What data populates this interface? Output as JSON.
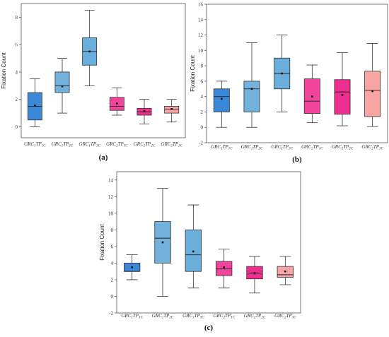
{
  "chart_data": [
    {
      "type": "box",
      "panel_label": "(a)",
      "ylabel": "Fixation Count",
      "ylim": [
        -0.8,
        9
      ],
      "yticks": [
        0,
        2,
        4,
        6,
        8
      ],
      "categories": [
        "GRC1TP1C",
        "GRC1TP2C",
        "GRC1TP3C",
        "GRC2TP1C",
        "GRC2TP2C",
        "GRC2TP3C"
      ],
      "colors": [
        "#3b87d8",
        "#72b1dc",
        "#6aaedc",
        "#f0449d",
        "#ee2e8e",
        "#f7a4a4"
      ],
      "boxes": [
        {
          "whisker_low": 0,
          "q1": 0.5,
          "median": 1.5,
          "q3": 2.5,
          "whisker_high": 3.5,
          "mean": 1.55
        },
        {
          "whisker_low": 1,
          "q1": 2.5,
          "median": 3,
          "q3": 4,
          "whisker_high": 5,
          "mean": 2.95
        },
        {
          "whisker_low": 3,
          "q1": 4.5,
          "median": 5.5,
          "q3": 6.5,
          "whisker_high": 8.5,
          "mean": 5.5
        },
        {
          "whisker_low": 0.85,
          "q1": 1.2,
          "median": 1.5,
          "q3": 2.15,
          "whisker_high": 2.85,
          "mean": 1.7
        },
        {
          "whisker_low": 0.2,
          "q1": 0.85,
          "median": 1.1,
          "q3": 1.35,
          "whisker_high": 2.0,
          "mean": 1.15
        },
        {
          "whisker_low": 0.35,
          "q1": 1.0,
          "median": 1.3,
          "q3": 1.5,
          "whisker_high": 2.0,
          "mean": 1.3
        }
      ]
    },
    {
      "type": "box",
      "panel_label": "(b)",
      "ylabel": "Fixation Count",
      "ylim": [
        -2,
        16
      ],
      "yticks": [
        -2,
        0,
        2,
        4,
        6,
        8,
        10,
        12,
        14,
        16
      ],
      "categories": [
        "GRC1TP1C",
        "GRC1TP2C",
        "GRC1TP3C",
        "GRC2TP1C",
        "GRC2TP2C",
        "GRC2TP3C"
      ],
      "colors": [
        "#3b87d8",
        "#72b1dc",
        "#6aaedc",
        "#f0449d",
        "#ee2e8e",
        "#f7a4a4"
      ],
      "boxes": [
        {
          "whisker_low": 0,
          "q1": 2,
          "median": 4,
          "q3": 5,
          "whisker_high": 6,
          "mean": 3.7
        },
        {
          "whisker_low": 0,
          "q1": 2,
          "median": 5,
          "q3": 6,
          "whisker_high": 11,
          "mean": 5.0
        },
        {
          "whisker_low": 2,
          "q1": 5,
          "median": 7,
          "q3": 9,
          "whisker_high": 12,
          "mean": 7.0
        },
        {
          "whisker_low": 0.6,
          "q1": 1.8,
          "median": 3.4,
          "q3": 6.3,
          "whisker_high": 8.1,
          "mean": 4.0
        },
        {
          "whisker_low": 0.2,
          "q1": 1.7,
          "median": 4.6,
          "q3": 6.2,
          "whisker_high": 9.7,
          "mean": 4.2
        },
        {
          "whisker_low": 0.1,
          "q1": 1.4,
          "median": 4.8,
          "q3": 7.3,
          "whisker_high": 10.9,
          "mean": 4.7
        }
      ]
    },
    {
      "type": "box",
      "panel_label": "(c)",
      "ylabel": "Fixation Count",
      "ylim": [
        -2,
        15
      ],
      "yticks": [
        -2,
        0,
        2,
        4,
        6,
        8,
        10,
        12,
        14
      ],
      "categories": [
        "GRC1TP1C",
        "GRC1TP2C",
        "GRC1TP3C",
        "GRC2TP1C",
        "GRC2TP2C",
        "GRC2TP3C"
      ],
      "colors": [
        "#3b87d8",
        "#72b1dc",
        "#6aaedc",
        "#f0449d",
        "#ee2e8e",
        "#f7a4a4"
      ],
      "boxes": [
        {
          "whisker_low": 2,
          "q1": 3,
          "median": 3,
          "q3": 4,
          "whisker_high": 5,
          "mean": 3.5
        },
        {
          "whisker_low": 0,
          "q1": 4,
          "median": 7,
          "q3": 9,
          "whisker_high": 13,
          "mean": 6.5
        },
        {
          "whisker_low": 1,
          "q1": 3,
          "median": 5,
          "q3": 8,
          "whisker_high": 11,
          "mean": 5.4
        },
        {
          "whisker_low": 1,
          "q1": 2.5,
          "median": 3.3,
          "q3": 4.2,
          "whisker_high": 5.7,
          "mean": 3.5
        },
        {
          "whisker_low": 0.4,
          "q1": 2.1,
          "median": 2.8,
          "q3": 3.6,
          "whisker_high": 4.8,
          "mean": 2.8
        },
        {
          "whisker_low": 1.4,
          "q1": 2.3,
          "median": 2.6,
          "q3": 3.6,
          "whisker_high": 4.8,
          "mean": 3.0
        }
      ]
    }
  ]
}
